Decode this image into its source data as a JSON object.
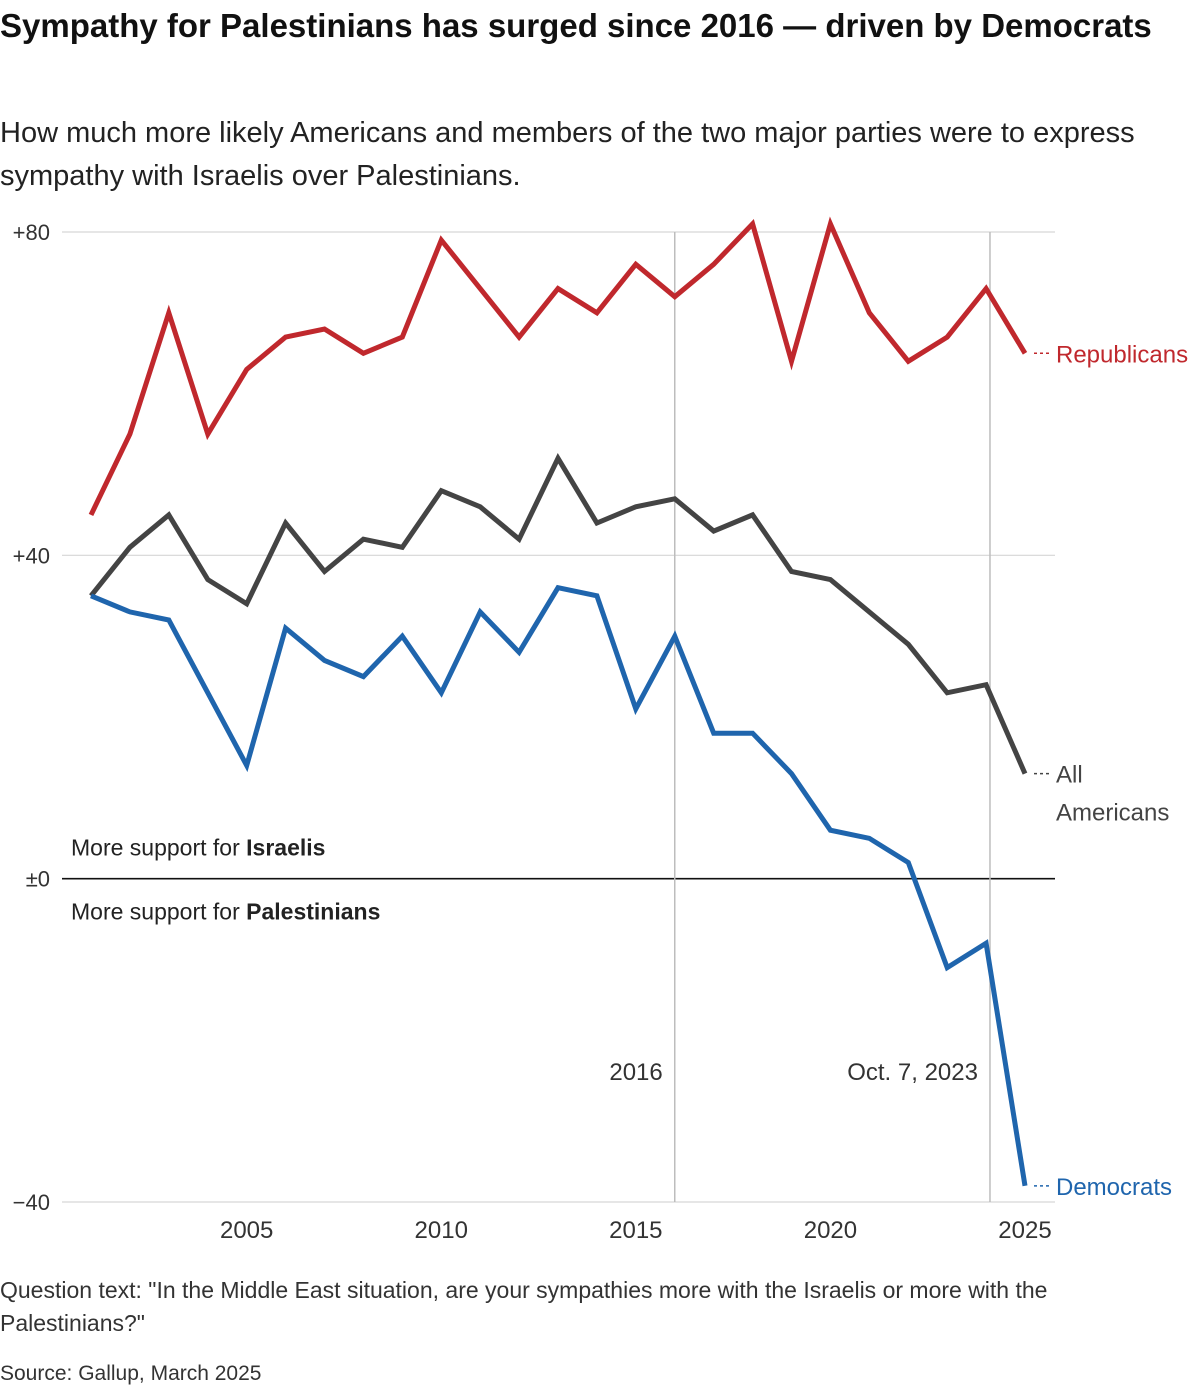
{
  "chart_data": {
    "type": "line",
    "title": "Sympathy for Palestinians has surged since 2016 —  driven by Democrats",
    "subtitle": "How much more likely Americans and members of the two major parties were to express sympathy with Israelis over Palestinians.",
    "xlabel": "",
    "ylabel": "",
    "xlim": [
      2000.5,
      2025.3
    ],
    "ylim": [
      -40,
      80
    ],
    "y_ticks": [
      {
        "value": 80,
        "label": "+80"
      },
      {
        "value": 40,
        "label": "+40"
      },
      {
        "value": 0,
        "label": "±0"
      },
      {
        "value": -40,
        "label": "−40"
      }
    ],
    "x_ticks": [
      2005,
      2010,
      2015,
      2020,
      2025
    ],
    "x_tick_labels": [
      "2005",
      "2010",
      "2015",
      "2020",
      "2025"
    ],
    "x": [
      2001,
      2002,
      2003,
      2004,
      2005,
      2006,
      2007,
      2008,
      2009,
      2010,
      2011,
      2012,
      2013,
      2014,
      2015,
      2016,
      2017,
      2018,
      2019,
      2020,
      2021,
      2022,
      2023,
      2024,
      2025
    ],
    "series": [
      {
        "name": "Republicans",
        "color": "#c0282d",
        "values": [
          45,
          55,
          70,
          55,
          63,
          67,
          68,
          65,
          67,
          79,
          73,
          67,
          73,
          70,
          76,
          72,
          76,
          81,
          64,
          81,
          70,
          64,
          67,
          73,
          65
        ]
      },
      {
        "name": "All Americans",
        "color": "#444444",
        "values": [
          35,
          41,
          45,
          37,
          34,
          44,
          38,
          42,
          41,
          48,
          46,
          42,
          52,
          44,
          46,
          47,
          43,
          45,
          38,
          37,
          33,
          29,
          23,
          24,
          13
        ]
      },
      {
        "name": "Democrats",
        "color": "#1f65ad",
        "values": [
          35,
          33,
          32,
          23,
          14,
          31,
          27,
          25,
          30,
          23,
          33,
          28,
          36,
          35,
          21,
          30,
          18,
          18,
          13,
          6,
          5,
          2,
          -11,
          -8,
          -38
        ]
      }
    ],
    "series_labels": [
      {
        "series": "Republicans",
        "lines": [
          "Republicans"
        ]
      },
      {
        "series": "All Americans",
        "lines": [
          "All",
          "Americans"
        ]
      },
      {
        "series": "Democrats",
        "lines": [
          "Democrats"
        ]
      }
    ],
    "reference_lines": [
      {
        "x": 2016,
        "label": "2016"
      },
      {
        "x": 2024.1,
        "label": "Oct. 7, 2023"
      }
    ],
    "zero_annotations": {
      "above_prefix": "More support for ",
      "above_bold": "Israelis",
      "below_prefix": "More support for ",
      "below_bold": "Palestinians"
    },
    "grid": true,
    "legend": "direct labels at line ends (right)"
  },
  "footer": {
    "question": "Question text: \"In the Middle East situation, are your sympathies more with the Israelis or more with the Palestinians?\"",
    "source": "Source: Gallup, March 2025"
  }
}
